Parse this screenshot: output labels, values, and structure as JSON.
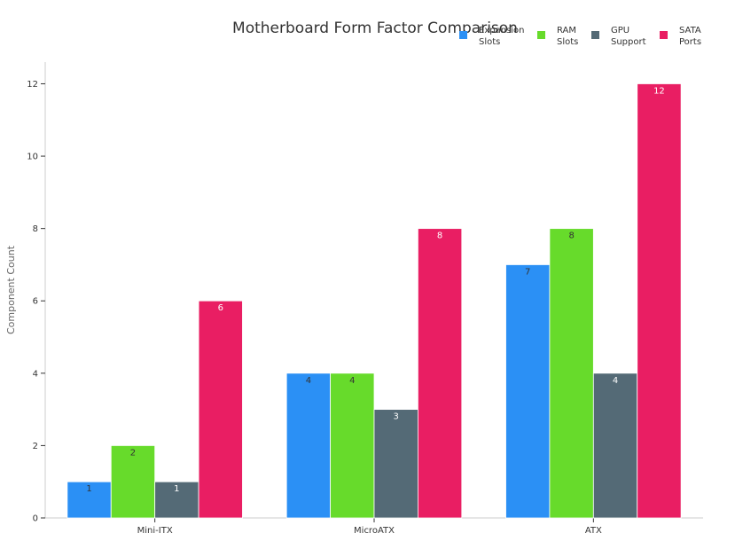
{
  "chart_data": {
    "type": "bar",
    "title": "Motherboard Form Factor Comparison",
    "xlabel": "",
    "ylabel": "Component Count",
    "categories": [
      "Mini-ITX",
      "MicroATX",
      "ATX"
    ],
    "series": [
      {
        "name": "Expansion Slots",
        "color": "#2b90f5",
        "label_color": "#333333",
        "values": [
          1,
          4,
          7
        ]
      },
      {
        "name": "RAM Slots",
        "color": "#67db2b",
        "label_color": "#333333",
        "values": [
          2,
          4,
          8
        ]
      },
      {
        "name": "GPU Support",
        "color": "#546a76",
        "label_color": "#ffffff",
        "values": [
          1,
          3,
          4
        ]
      },
      {
        "name": "SATA Ports",
        "color": "#e91e63",
        "label_color": "#ffffff",
        "values": [
          6,
          8,
          12
        ]
      }
    ],
    "ylim": [
      0,
      12.6
    ],
    "yticks": [
      0,
      2,
      4,
      6,
      8,
      10,
      12
    ],
    "grid": false,
    "legend": "top-right"
  }
}
